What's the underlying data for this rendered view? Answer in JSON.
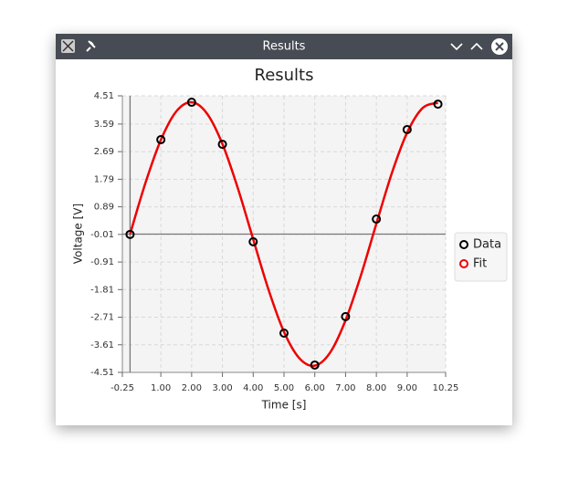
{
  "window": {
    "title": "Results"
  },
  "chart_data": {
    "type": "line",
    "title": "Results",
    "x_label": "Time [s]",
    "y_label": "Voltage [V]",
    "series": [
      {
        "name": "Data",
        "color": "#000000",
        "marker": "circle",
        "line": false,
        "x": [
          0,
          1,
          2,
          3,
          4,
          5,
          6,
          7,
          8,
          9,
          10
        ],
        "values": [
          -0.01,
          3.08,
          4.3,
          2.93,
          -0.25,
          -3.23,
          -4.27,
          -2.69,
          0.49,
          3.41,
          4.24
        ]
      },
      {
        "name": "Fit",
        "color": "#ee0000",
        "marker": "none",
        "line": true,
        "x": [
          0,
          0.5,
          1,
          1.5,
          2,
          2.5,
          3,
          3.5,
          4,
          4.5,
          5,
          5.5,
          6,
          6.5,
          7,
          7.5,
          8,
          8.5,
          9,
          9.5,
          10
        ],
        "values": [
          0,
          1.67,
          3.07,
          4.0,
          4.3,
          3.93,
          2.94,
          1.5,
          -0.17,
          -1.82,
          -3.19,
          -4.05,
          -4.29,
          -3.86,
          -2.81,
          -1.34,
          0.34,
          1.98,
          3.31,
          4.11,
          4.28
        ]
      }
    ],
    "xlim": [
      -0.25,
      10.25
    ],
    "xticks": [
      -0.25,
      {
        "value": 1,
        "label": "1.00"
      },
      {
        "value": 2,
        "label": "2.00"
      },
      {
        "value": 3,
        "label": "3.00"
      },
      {
        "value": 4,
        "label": "4.00"
      },
      {
        "value": 5,
        "label": "5.00"
      },
      {
        "value": 6,
        "label": "6.00"
      },
      {
        "value": 7,
        "label": "7.00"
      },
      {
        "value": 8,
        "label": "8.00"
      },
      {
        "value": 9,
        "label": "9.00"
      },
      10.25
    ],
    "ylim": [
      -4.51,
      4.51
    ],
    "yticks": [
      -4.51,
      -3.61,
      -2.71,
      -1.81,
      -0.91,
      -0.01,
      0.89,
      1.79,
      2.69,
      3.59,
      4.51
    ],
    "grid": true,
    "legend": "right"
  }
}
